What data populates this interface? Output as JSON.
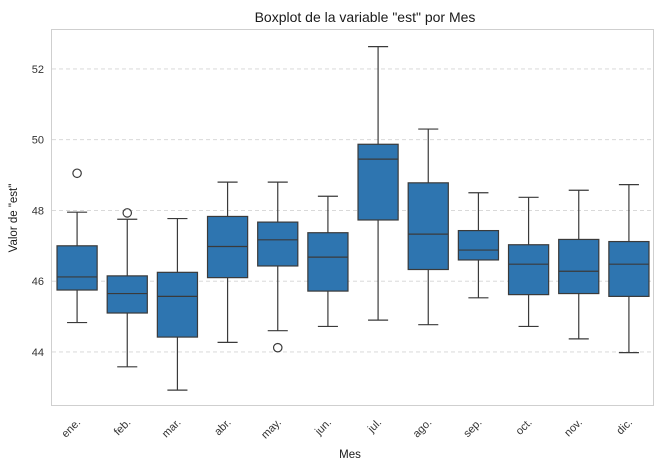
{
  "chart_data": {
    "type": "boxplot",
    "title": "Boxplot de la variable \"est\" por Mes",
    "xlabel": "Mes",
    "ylabel": "Valor de \"est\"",
    "ylim": [
      42.5,
      53.1
    ],
    "yticks": [
      44,
      46,
      48,
      50,
      52
    ],
    "grid": "y-dashed",
    "box_color": "#2e75b0",
    "edge_color": "#3a3a3a",
    "categories": [
      "ene.",
      "feb.",
      "mar.",
      "abr.",
      "may.",
      "jun.",
      "jul.",
      "ago.",
      "sep.",
      "oct.",
      "nov.",
      "dic."
    ],
    "boxes": [
      {
        "whislo": 44.83,
        "q1": 45.75,
        "med": 46.12,
        "q3": 47.0,
        "whishi": 47.95,
        "fliers": [
          49.05
        ]
      },
      {
        "whislo": 43.58,
        "q1": 45.1,
        "med": 45.65,
        "q3": 46.15,
        "whishi": 47.75,
        "fliers": [
          47.93
        ]
      },
      {
        "whislo": 42.92,
        "q1": 44.42,
        "med": 45.57,
        "q3": 46.25,
        "whishi": 47.77,
        "fliers": []
      },
      {
        "whislo": 44.27,
        "q1": 46.1,
        "med": 46.98,
        "q3": 47.83,
        "whishi": 48.8,
        "fliers": []
      },
      {
        "whislo": 44.6,
        "q1": 46.43,
        "med": 47.17,
        "q3": 47.67,
        "whishi": 48.8,
        "fliers": [
          44.12
        ]
      },
      {
        "whislo": 44.72,
        "q1": 45.72,
        "med": 46.68,
        "q3": 47.37,
        "whishi": 48.4,
        "fliers": []
      },
      {
        "whislo": 44.9,
        "q1": 47.73,
        "med": 49.45,
        "q3": 49.87,
        "whishi": 52.63,
        "fliers": []
      },
      {
        "whislo": 44.77,
        "q1": 46.33,
        "med": 47.33,
        "q3": 48.78,
        "whishi": 50.3,
        "fliers": []
      },
      {
        "whislo": 45.53,
        "q1": 46.6,
        "med": 46.88,
        "q3": 47.43,
        "whishi": 48.5,
        "fliers": []
      },
      {
        "whislo": 44.72,
        "q1": 45.62,
        "med": 46.48,
        "q3": 47.03,
        "whishi": 48.37,
        "fliers": []
      },
      {
        "whislo": 44.37,
        "q1": 45.65,
        "med": 46.28,
        "q3": 47.18,
        "whishi": 48.57,
        "fliers": []
      },
      {
        "whislo": 43.98,
        "q1": 45.57,
        "med": 46.48,
        "q3": 47.12,
        "whishi": 48.73,
        "fliers": []
      }
    ]
  }
}
